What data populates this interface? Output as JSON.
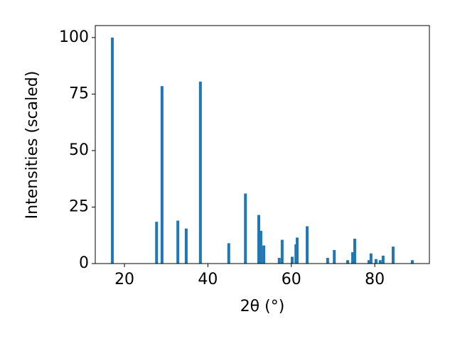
{
  "chart_data": {
    "type": "bar",
    "x_label": "2θ (°)",
    "y_label": "Intensities (scaled)",
    "x": [
      17.1,
      27.7,
      29.0,
      32.8,
      34.8,
      38.2,
      45.0,
      49.0,
      52.2,
      52.7,
      53.4,
      57.1,
      57.8,
      60.2,
      61.1,
      61.4,
      63.8,
      68.7,
      70.3,
      73.5,
      74.7,
      75.2,
      78.6,
      79.1,
      80.3,
      81.3,
      82.0,
      84.4,
      89.0
    ],
    "values": [
      100,
      18.5,
      78.5,
      19,
      15.5,
      80.5,
      9,
      31,
      21.5,
      14.5,
      8,
      2.5,
      10.5,
      3,
      8.5,
      11.5,
      16.5,
      2.5,
      6,
      1.5,
      5,
      11,
      1.5,
      4.5,
      2,
      1.5,
      3.5,
      7.5,
      1.5
    ],
    "color": "#1f77b4",
    "xlim": [
      13.0,
      93.1
    ],
    "xticks": [
      20,
      40,
      60,
      80
    ],
    "ylim": [
      0,
      105.3
    ],
    "yticks": [
      0,
      25,
      50,
      75,
      100
    ]
  }
}
